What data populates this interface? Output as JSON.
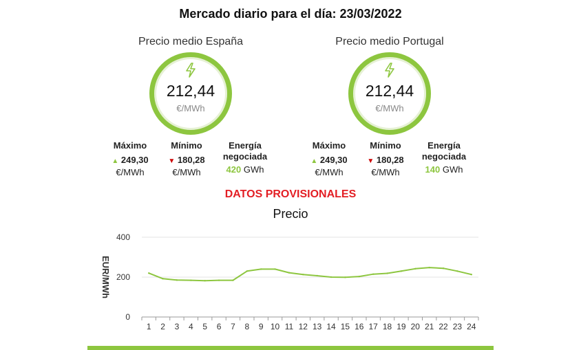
{
  "title": "Mercado diario para el día: 23/03/2022",
  "panels": {
    "es": {
      "label": "Precio medio España",
      "price": "212,44",
      "unit": "€/MWh",
      "max_label": "Máximo",
      "max_value": "249,30",
      "max_unit": "€/MWh",
      "min_label": "Mínimo",
      "min_value": "180,28",
      "min_unit": "€/MWh",
      "energy_label_1": "Energía",
      "energy_label_2": "negociada",
      "energy_value": "420",
      "energy_unit": "GWh"
    },
    "pt": {
      "label": "Precio medio Portugal",
      "price": "212,44",
      "unit": "€/MWh",
      "max_label": "Máximo",
      "max_value": "249,30",
      "max_unit": "€/MWh",
      "min_label": "Mínimo",
      "min_value": "180,28",
      "min_unit": "€/MWh",
      "energy_label_1": "Energía",
      "energy_label_2": "negociada",
      "energy_value": "140",
      "energy_unit": "GWh"
    }
  },
  "provisional": "DATOS PROVISIONALES",
  "colors": {
    "accent": "#8dc63f",
    "down": "#cc0000",
    "provisional": "#e31e24"
  },
  "icons": {
    "ring_icon": "lightning-bolt-icon",
    "up": "triangle-up-icon",
    "down": "triangle-down-icon"
  },
  "chart_data": {
    "type": "line",
    "title": "Precio",
    "xlabel": "",
    "ylabel": "EUR/MWh",
    "x": [
      1,
      2,
      3,
      4,
      5,
      6,
      7,
      8,
      9,
      10,
      11,
      12,
      13,
      14,
      15,
      16,
      17,
      18,
      19,
      20,
      21,
      22,
      23,
      24
    ],
    "series": [
      {
        "values": [
          220,
          192,
          185,
          184,
          182,
          184,
          184,
          230,
          240,
          240,
          222,
          213,
          207,
          200,
          199,
          203,
          215,
          219,
          230,
          242,
          248,
          244,
          230,
          213
        ]
      }
    ],
    "ylim": [
      0,
      400
    ],
    "yticks": [
      0,
      200,
      400
    ],
    "grid": true
  }
}
